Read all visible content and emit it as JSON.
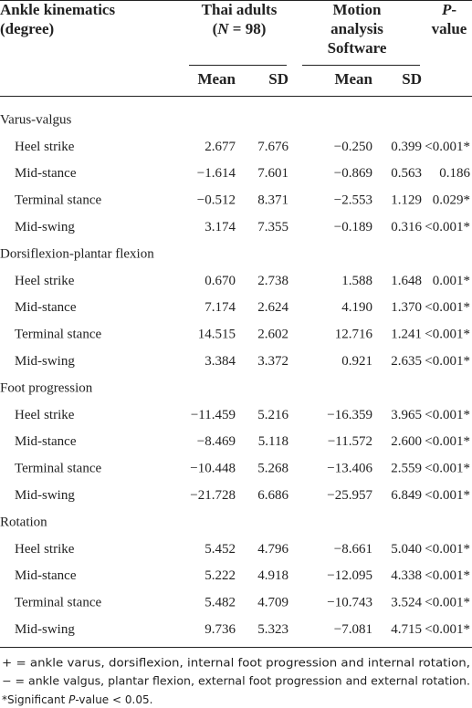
{
  "header": {
    "kinematics": [
      "Ankle kinematics",
      "(degree)"
    ],
    "thai": {
      "line1": "Thai adults",
      "open": "(",
      "italic": "N",
      "close": " = 98)"
    },
    "software": [
      "Motion",
      "analysis",
      "Software"
    ],
    "pvalue": {
      "italic": "P",
      "dash": "-",
      "line2": "value"
    },
    "sub": [
      "Mean",
      "SD",
      "Mean",
      "SD"
    ]
  },
  "table": {
    "sections": [
      {
        "title": "Varus-valgus",
        "rows": [
          [
            "Heel strike",
            "2.677",
            "7.676",
            "−0.250",
            "0.399",
            "<0.001*"
          ],
          [
            "Mid-stance",
            "−1.614",
            "7.601",
            "−0.869",
            "0.563",
            "0.186"
          ],
          [
            "Terminal stance",
            "−0.512",
            "8.371",
            "−2.553",
            "1.129",
            "0.029*"
          ],
          [
            "Mid-swing",
            "3.174",
            "7.355",
            "−0.189",
            "0.316",
            "<0.001*"
          ]
        ]
      },
      {
        "title": "Dorsiflexion-plantar flexion",
        "rows": [
          [
            "Heel strike",
            "0.670",
            "2.738",
            "1.588",
            "1.648",
            "0.001*"
          ],
          [
            "Mid-stance",
            "7.174",
            "2.624",
            "4.190",
            "1.370",
            "<0.001*"
          ],
          [
            "Terminal stance",
            "14.515",
            "2.602",
            "12.716",
            "1.241",
            "<0.001*"
          ],
          [
            "Mid-swing",
            "3.384",
            "3.372",
            "0.921",
            "2.635",
            "<0.001*"
          ]
        ]
      },
      {
        "title": "Foot progression",
        "rows": [
          [
            "Heel strike",
            "−11.459",
            "5.216",
            "−16.359",
            "3.965",
            "<0.001*"
          ],
          [
            "Mid-stance",
            "−8.469",
            "5.118",
            "−11.572",
            "2.600",
            "<0.001*"
          ],
          [
            "Terminal stance",
            "−10.448",
            "5.268",
            "−13.406",
            "2.559",
            "<0.001*"
          ],
          [
            "Mid-swing",
            "−21.728",
            "6.686",
            "−25.957",
            "6.849",
            "<0.001*"
          ]
        ]
      },
      {
        "title": "Rotation",
        "rows": [
          [
            "Heel strike",
            "5.452",
            "4.796",
            "−8.661",
            "5.040",
            "<0.001*"
          ],
          [
            "Mid-stance",
            "5.222",
            "4.918",
            "−12.095",
            "4.338",
            "<0.001*"
          ],
          [
            "Terminal stance",
            "5.482",
            "4.709",
            "−10.743",
            "3.524",
            "<0.001*"
          ],
          [
            "Mid-swing",
            "9.736",
            "5.323",
            "−7.081",
            "4.715",
            "<0.001*"
          ]
        ]
      }
    ]
  },
  "footnote": {
    "lines": [
      "+ = ankle varus, dorsiflexion, internal foot progression and internal rotation,",
      "− = ankle valgus, plantar flexion, external foot progression and external rotation."
    ],
    "sig": {
      "pre": "*Significant ",
      "italic": "P",
      "post": "-value < 0.05."
    }
  }
}
